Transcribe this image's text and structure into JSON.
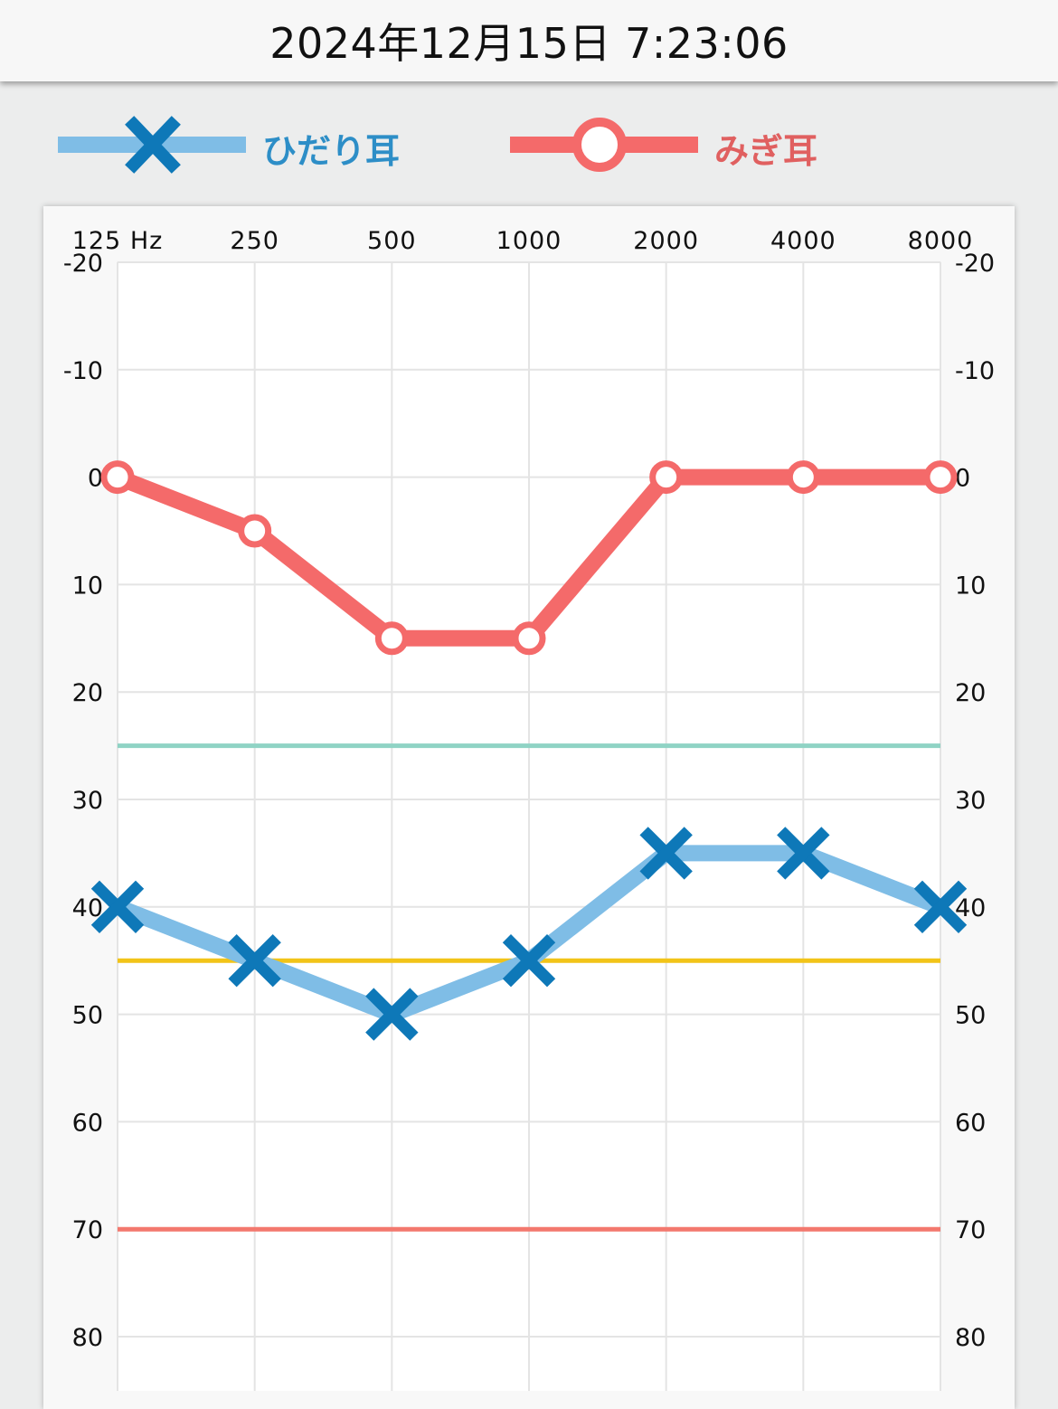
{
  "header": {
    "timestamp": "2024年12月15日 7:23:06"
  },
  "legend": {
    "left": {
      "label": "ひだり耳",
      "color": "#7fbde6",
      "marker_color": "#0e78b8",
      "text_color": "#2d8ec7",
      "marker": "x-icon"
    },
    "right": {
      "label": "みぎ耳",
      "color": "#f46a6a",
      "marker": "circle-icon",
      "text_color": "#e06060"
    }
  },
  "chart_data": {
    "type": "line",
    "x": [
      "125 Hz",
      "250",
      "500",
      "1000",
      "2000",
      "4000",
      "8000"
    ],
    "x_unit": "Hz",
    "y_ticks": [
      "-20",
      "-10",
      "0",
      "10",
      "20",
      "30",
      "40",
      "50",
      "60",
      "70",
      "80"
    ],
    "ylim": [
      -20,
      85
    ],
    "y_inverted": true,
    "grid": true,
    "series": [
      {
        "name": "ひだり耳",
        "values": [
          40,
          45,
          50,
          45,
          35,
          35,
          40
        ],
        "color": "#7fbde6",
        "marker_color": "#0e78b8",
        "marker": "x"
      },
      {
        "name": "みぎ耳",
        "values": [
          0,
          5,
          15,
          15,
          0,
          0,
          0
        ],
        "color": "#f46a6a",
        "marker": "circle"
      }
    ],
    "reference_lines": [
      {
        "value": 25,
        "color": "#8fd3c4"
      },
      {
        "value": 45,
        "color": "#f2c418"
      },
      {
        "value": 70,
        "color": "#f3786e"
      }
    ]
  }
}
